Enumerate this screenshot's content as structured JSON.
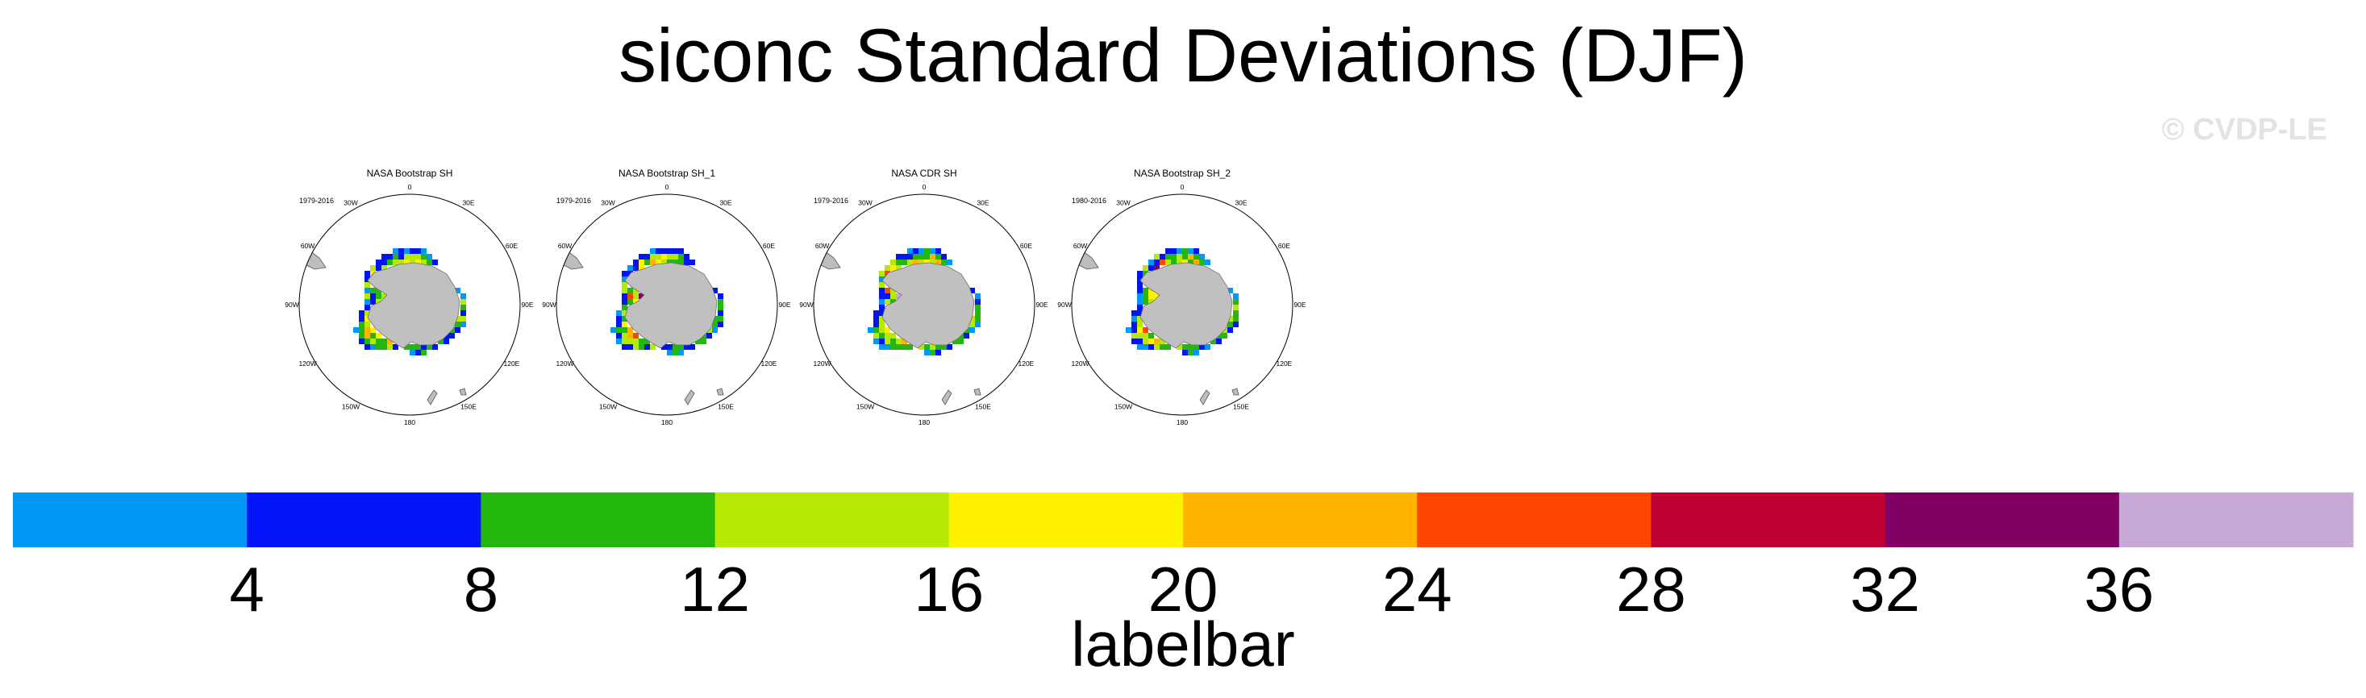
{
  "title": "siconc Standard Deviations (DJF)",
  "copyright": "© CVDP-LE",
  "maps": [
    {
      "title": "NASA Bootstrap SH",
      "period": "1979-2016"
    },
    {
      "title": "NASA Bootstrap SH_1",
      "period": "1979-2016"
    },
    {
      "title": "NASA CDR SH",
      "period": "1979-2016"
    },
    {
      "title": "NASA Bootstrap SH_2",
      "period": "1980-2016"
    }
  ],
  "longitude_labels": [
    "0",
    "30E",
    "60E",
    "90E",
    "120E",
    "150E",
    "180",
    "150W",
    "120W",
    "90W",
    "60W",
    "30W"
  ],
  "chart_data": {
    "type": "heatmap",
    "title": "siconc Standard Deviations (DJF)",
    "projection": "south polar stereographic",
    "panels": [
      "NASA Bootstrap SH",
      "NASA Bootstrap SH_1",
      "NASA CDR SH",
      "NASA Bootstrap SH_2"
    ],
    "colorbar": {
      "title": "labelbar",
      "levels": [
        4,
        8,
        12,
        16,
        20,
        24,
        28,
        32,
        36
      ],
      "colors": [
        "#0099f5",
        "#0014f5",
        "#24b80f",
        "#b6ea05",
        "#fff200",
        "#ffb400",
        "#ff4600",
        "#c00032",
        "#820064",
        "#c8a8d6"
      ]
    }
  }
}
